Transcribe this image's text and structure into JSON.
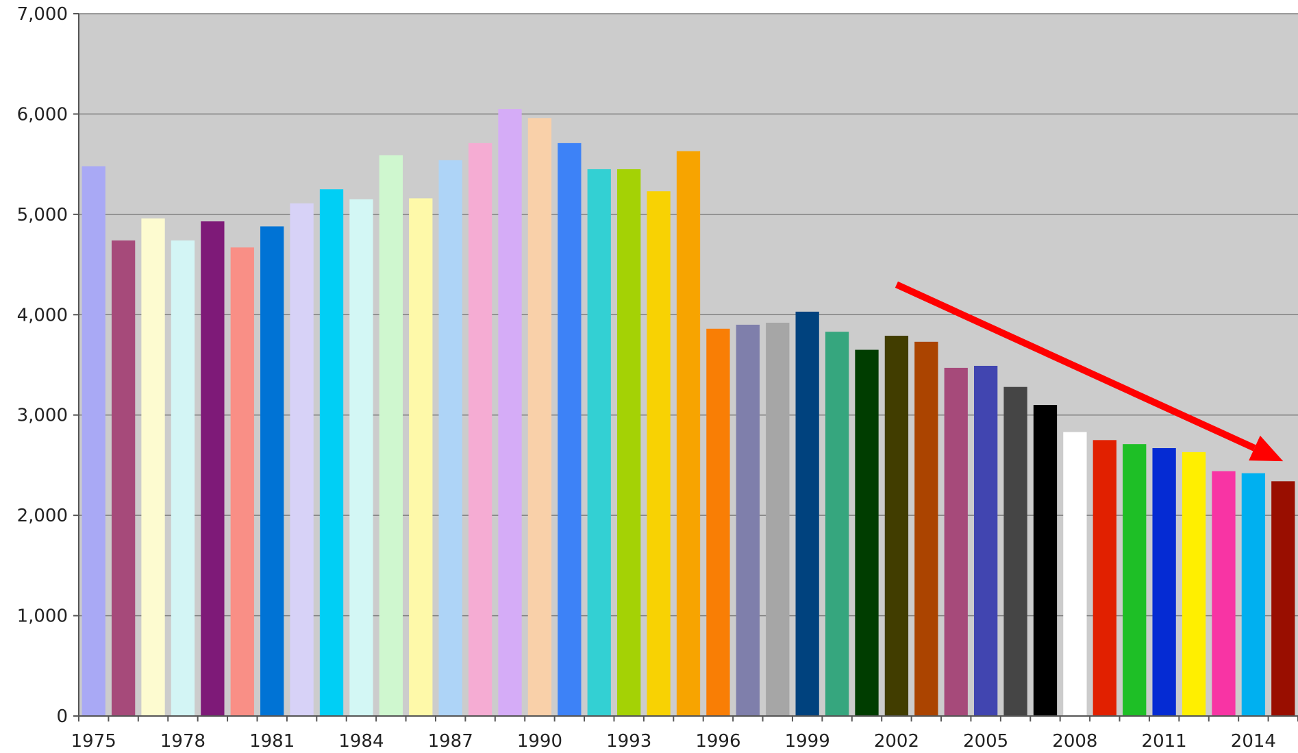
{
  "chart_data": {
    "type": "bar",
    "categories": [
      "1975",
      "1976",
      "1977",
      "1978",
      "1979",
      "1980",
      "1981",
      "1982",
      "1983",
      "1984",
      "1985",
      "1986",
      "1987",
      "1988",
      "1989",
      "1990",
      "1991",
      "1992",
      "1993",
      "1994",
      "1995",
      "1996",
      "1997",
      "1998",
      "1999",
      "2000",
      "2001",
      "2002",
      "2003",
      "2004",
      "2005",
      "2006",
      "2007",
      "2008",
      "2009",
      "2010",
      "2011",
      "2012",
      "2013",
      "2014",
      "2015"
    ],
    "x_tick_labels": [
      "1975",
      "1978",
      "1981",
      "1984",
      "1987",
      "1990",
      "1993",
      "1996",
      "1999",
      "2002",
      "2005",
      "2008",
      "2011",
      "2014"
    ],
    "values": [
      5480,
      4740,
      4960,
      4740,
      4930,
      4670,
      4880,
      5110,
      5250,
      5150,
      5590,
      5160,
      5540,
      5710,
      6050,
      5960,
      5710,
      5450,
      5450,
      5230,
      5630,
      3860,
      3900,
      3920,
      4030,
      3830,
      3650,
      3790,
      3730,
      3470,
      3490,
      3280,
      3100,
      2830,
      2750,
      2710,
      2670,
      2630,
      2440,
      2420,
      2340
    ],
    "colors": [
      "#a9a9f5",
      "#a64a7a",
      "#fdfbd0",
      "#d3f5f5",
      "#7e1a78",
      "#f98f86",
      "#0073d5",
      "#d7d2f7",
      "#00cff5",
      "#d3f7f5",
      "#cff7cf",
      "#fef9a9",
      "#aed4f7",
      "#f5acd3",
      "#d5acf7",
      "#f9d0a9",
      "#3d82f7",
      "#33d0d3",
      "#a4d205",
      "#f8d203",
      "#f7a400",
      "#f97e05",
      "#7f7fab",
      "#a6a6a6",
      "#00427e",
      "#36a67e",
      "#003d00",
      "#413d00",
      "#ab4400",
      "#a64a7a",
      "#4145b0",
      "#454545",
      "#000000",
      "#ffffff",
      "#e12000",
      "#1ebf26",
      "#052bd3",
      "#ffef00",
      "#f834a4",
      "#00b0f0",
      "#990e00"
    ],
    "yticks": [
      0,
      1000,
      2000,
      3000,
      4000,
      5000,
      6000,
      7000
    ],
    "ytick_labels": [
      "0",
      "1,000",
      "2,000",
      "3,000",
      "4,000",
      "5,000",
      "6,000",
      "7,000"
    ],
    "ylim": [
      0,
      7000
    ],
    "title": "",
    "xlabel": "",
    "ylabel": "",
    "grid": true,
    "plot_background": "#cccccc",
    "gridline_color": "#7f7f7f",
    "annotation": {
      "type": "arrow",
      "color": "#ff0000",
      "from": [
        "2002",
        4300
      ],
      "to": [
        "2015",
        2540
      ]
    }
  }
}
